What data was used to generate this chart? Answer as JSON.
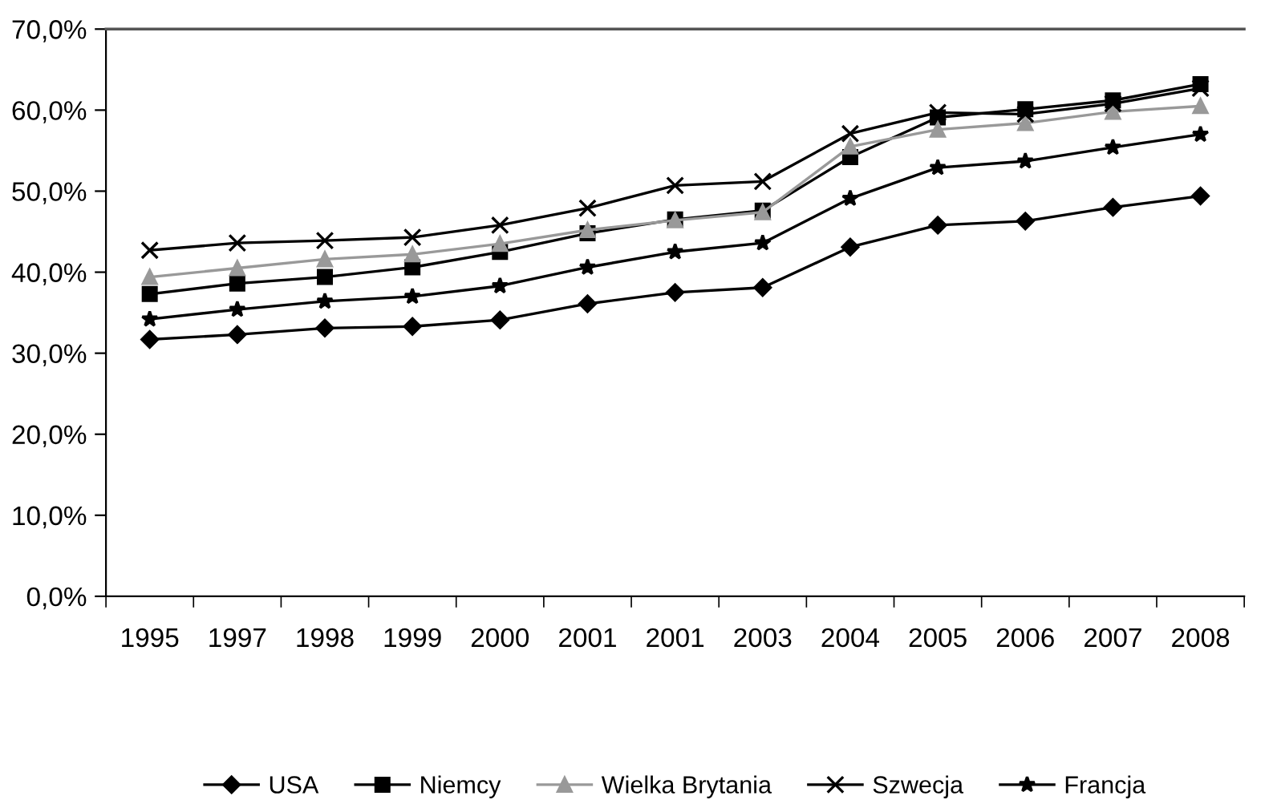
{
  "chart_data": {
    "type": "line",
    "categories": [
      "1995",
      "1997",
      "1998",
      "1999",
      "2000",
      "2001",
      "2001",
      "2003",
      "2004",
      "2005",
      "2006",
      "2007",
      "2008"
    ],
    "series": [
      {
        "name": "USA",
        "color": "#000000",
        "marker": "diamond",
        "values": [
          31.7,
          32.3,
          33.1,
          33.3,
          34.1,
          36.1,
          37.5,
          38.1,
          43.1,
          45.8,
          46.3,
          48.0,
          49.4
        ]
      },
      {
        "name": "Niemcy",
        "color": "#000000",
        "marker": "square",
        "values": [
          37.3,
          38.6,
          39.4,
          40.6,
          42.5,
          44.8,
          46.5,
          47.6,
          54.2,
          59.1,
          60.1,
          61.2,
          63.2
        ]
      },
      {
        "name": "Wielka Brytania",
        "color": "#999999",
        "marker": "triangle",
        "values": [
          39.4,
          40.5,
          41.6,
          42.2,
          43.5,
          45.2,
          46.4,
          47.4,
          55.5,
          57.6,
          58.4,
          59.8,
          60.5
        ]
      },
      {
        "name": "Szwecja",
        "color": "#000000",
        "marker": "cross",
        "values": [
          42.7,
          43.6,
          43.9,
          44.3,
          45.8,
          47.9,
          50.7,
          51.2,
          57.1,
          59.7,
          59.5,
          60.8,
          62.7
        ]
      },
      {
        "name": "Francja",
        "color": "#000000",
        "marker": "star",
        "values": [
          34.2,
          35.4,
          36.4,
          37.0,
          38.3,
          40.6,
          42.5,
          43.6,
          49.1,
          52.9,
          53.7,
          55.4,
          57.0
        ]
      }
    ],
    "ylim": [
      0,
      70
    ],
    "yticks": [
      {
        "value": 0,
        "label": "0,0%"
      },
      {
        "value": 10,
        "label": "10,0%"
      },
      {
        "value": 20,
        "label": "20,0%"
      },
      {
        "value": 30,
        "label": "30,0%"
      },
      {
        "value": 40,
        "label": "40,0%"
      },
      {
        "value": 50,
        "label": "50,0%"
      },
      {
        "value": 60,
        "label": "60,0%"
      },
      {
        "value": 70,
        "label": "70,0%"
      }
    ],
    "grid": false,
    "legend": "bottom",
    "line_style": "solid"
  }
}
